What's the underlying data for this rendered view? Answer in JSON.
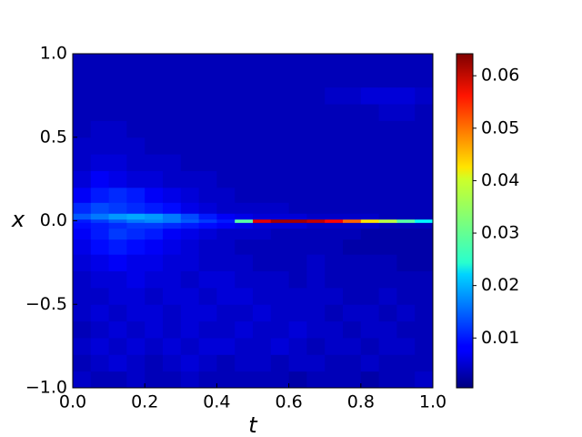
{
  "chart_data": {
    "type": "heatmap",
    "xlabel": "t",
    "ylabel": "x",
    "colormap": "jet",
    "xlim": [
      0,
      1
    ],
    "ylim": [
      -1,
      1
    ],
    "xticks": [
      {
        "value": 0,
        "label": "0.0"
      },
      0.2,
      0.4,
      0.6,
      0.8,
      {
        "value": 1,
        "label": "1.0"
      }
    ],
    "yticks": [
      {
        "value": -1,
        "label": "−1.0"
      },
      {
        "value": -0.5,
        "label": "−0.5"
      },
      {
        "value": 0,
        "label": "0.0"
      },
      0.5,
      {
        "value": 1,
        "label": "1.0"
      }
    ],
    "clim": [
      0.0005,
      0.0642
    ],
    "cticks": [
      0.01,
      0.02,
      0.03,
      0.04,
      0.05,
      0.06
    ],
    "x": [
      0.025,
      0.075,
      0.125,
      0.175,
      0.225,
      0.275,
      0.325,
      0.375,
      0.425,
      0.475,
      0.525,
      0.575,
      0.625,
      0.675,
      0.725,
      0.775,
      0.825,
      0.875,
      0.925,
      0.975
    ],
    "y": [
      -0.95,
      -0.85,
      -0.75,
      -0.65,
      -0.55,
      -0.45,
      -0.35,
      -0.25,
      -0.15,
      -0.07,
      -0.02,
      0,
      0.02,
      0.07,
      0.15,
      0.25,
      0.35,
      0.45,
      0.55,
      0.65,
      0.75,
      0.85,
      0.95
    ],
    "z": [
      [
        0.005,
        0.004,
        0.004,
        0.005,
        0.004,
        0.004,
        0.005,
        0.004,
        0.004,
        0.004,
        0.004,
        0.004,
        0.003,
        0.004,
        0.004,
        0.004,
        0.003,
        0.004,
        0.004,
        0.005
      ],
      [
        0.004,
        0.005,
        0.006,
        0.005,
        0.004,
        0.005,
        0.006,
        0.005,
        0.004,
        0.005,
        0.005,
        0.004,
        0.005,
        0.005,
        0.004,
        0.004,
        0.005,
        0.004,
        0.004,
        0.004
      ],
      [
        0.005,
        0.006,
        0.005,
        0.006,
        0.005,
        0.006,
        0.005,
        0.006,
        0.006,
        0.005,
        0.005,
        0.006,
        0.005,
        0.004,
        0.005,
        0.005,
        0.004,
        0.005,
        0.005,
        0.004
      ],
      [
        0.004,
        0.005,
        0.006,
        0.005,
        0.006,
        0.005,
        0.006,
        0.005,
        0.005,
        0.006,
        0.005,
        0.005,
        0.006,
        0.005,
        0.005,
        0.004,
        0.005,
        0.005,
        0.004,
        0.004
      ],
      [
        0.005,
        0.006,
        0.005,
        0.006,
        0.006,
        0.005,
        0.006,
        0.006,
        0.005,
        0.005,
        0.006,
        0.005,
        0.005,
        0.005,
        0.004,
        0.005,
        0.005,
        0.004,
        0.005,
        0.004
      ],
      [
        0.005,
        0.005,
        0.006,
        0.006,
        0.005,
        0.006,
        0.006,
        0.005,
        0.006,
        0.006,
        0.005,
        0.005,
        0.005,
        0.005,
        0.005,
        0.004,
        0.004,
        0.005,
        0.004,
        0.004
      ],
      [
        0.005,
        0.006,
        0.006,
        0.007,
        0.006,
        0.006,
        0.005,
        0.006,
        0.006,
        0.005,
        0.005,
        0.005,
        0.004,
        0.005,
        0.004,
        0.004,
        0.004,
        0.004,
        0.004,
        0.004
      ],
      [
        0.006,
        0.007,
        0.008,
        0.007,
        0.007,
        0.006,
        0.006,
        0.005,
        0.005,
        0.005,
        0.004,
        0.004,
        0.004,
        0.005,
        0.004,
        0.004,
        0.004,
        0.004,
        0.003,
        0.003
      ],
      [
        0.007,
        0.009,
        0.01,
        0.009,
        0.008,
        0.007,
        0.006,
        0.005,
        0.005,
        0.004,
        0.004,
        0.004,
        0.004,
        0.004,
        0.004,
        0.003,
        0.003,
        0.003,
        0.003,
        0.003
      ],
      [
        0.008,
        0.01,
        0.012,
        0.011,
        0.01,
        0.008,
        0.007,
        0.006,
        0.005,
        0.005,
        0.005,
        0.004,
        0.004,
        0.004,
        0.004,
        0.004,
        0.003,
        0.003,
        0.003,
        0.003
      ],
      [
        0.009,
        0.01,
        0.011,
        0.012,
        0.012,
        0.011,
        0.01,
        0.009,
        0.008,
        0.007,
        0.006,
        0.006,
        0.006,
        0.005,
        0.005,
        0.005,
        0.005,
        0.004,
        0.004,
        0.004
      ],
      [
        0.01,
        0.012,
        0.014,
        0.016,
        0.017,
        0.016,
        0.014,
        0.012,
        0.01,
        0.03,
        0.058,
        0.062,
        0.062,
        0.06,
        0.056,
        0.05,
        0.042,
        0.036,
        0.03,
        0.024
      ],
      [
        0.014,
        0.016,
        0.018,
        0.019,
        0.018,
        0.016,
        0.013,
        0.01,
        0.008,
        0.007,
        0.006,
        0.006,
        0.006,
        0.005,
        0.005,
        0.005,
        0.005,
        0.004,
        0.004,
        0.004
      ],
      [
        0.011,
        0.013,
        0.012,
        0.011,
        0.01,
        0.009,
        0.007,
        0.006,
        0.005,
        0.005,
        0.005,
        0.005,
        0.004,
        0.004,
        0.004,
        0.004,
        0.004,
        0.004,
        0.004,
        0.004
      ],
      [
        0.008,
        0.01,
        0.011,
        0.01,
        0.008,
        0.007,
        0.006,
        0.005,
        0.005,
        0.004,
        0.004,
        0.004,
        0.004,
        0.004,
        0.004,
        0.004,
        0.004,
        0.004,
        0.004,
        0.004
      ],
      [
        0.006,
        0.008,
        0.007,
        0.006,
        0.006,
        0.005,
        0.005,
        0.005,
        0.004,
        0.004,
        0.004,
        0.004,
        0.004,
        0.004,
        0.004,
        0.004,
        0.004,
        0.004,
        0.004,
        0.004
      ],
      [
        0.005,
        0.006,
        0.006,
        0.005,
        0.005,
        0.005,
        0.004,
        0.004,
        0.004,
        0.004,
        0.004,
        0.004,
        0.004,
        0.004,
        0.004,
        0.004,
        0.004,
        0.004,
        0.004,
        0.004
      ],
      [
        0.005,
        0.005,
        0.005,
        0.005,
        0.004,
        0.004,
        0.004,
        0.004,
        0.004,
        0.004,
        0.004,
        0.004,
        0.004,
        0.004,
        0.004,
        0.004,
        0.004,
        0.004,
        0.004,
        0.004
      ],
      [
        0.004,
        0.005,
        0.005,
        0.004,
        0.004,
        0.004,
        0.004,
        0.004,
        0.004,
        0.004,
        0.004,
        0.004,
        0.004,
        0.004,
        0.004,
        0.004,
        0.004,
        0.004,
        0.004,
        0.004
      ],
      [
        0.004,
        0.004,
        0.004,
        0.004,
        0.004,
        0.004,
        0.004,
        0.004,
        0.004,
        0.004,
        0.004,
        0.004,
        0.004,
        0.004,
        0.004,
        0.004,
        0.004,
        0.005,
        0.005,
        0.004
      ],
      [
        0.004,
        0.004,
        0.004,
        0.004,
        0.004,
        0.004,
        0.004,
        0.004,
        0.004,
        0.004,
        0.004,
        0.004,
        0.004,
        0.004,
        0.005,
        0.005,
        0.006,
        0.006,
        0.006,
        0.005
      ],
      [
        0.004,
        0.004,
        0.004,
        0.004,
        0.004,
        0.004,
        0.004,
        0.004,
        0.004,
        0.004,
        0.004,
        0.004,
        0.004,
        0.004,
        0.004,
        0.004,
        0.004,
        0.004,
        0.004,
        0.004
      ],
      [
        0.004,
        0.004,
        0.004,
        0.004,
        0.004,
        0.004,
        0.004,
        0.004,
        0.004,
        0.004,
        0.004,
        0.004,
        0.004,
        0.004,
        0.004,
        0.004,
        0.004,
        0.004,
        0.004,
        0.004
      ]
    ]
  }
}
